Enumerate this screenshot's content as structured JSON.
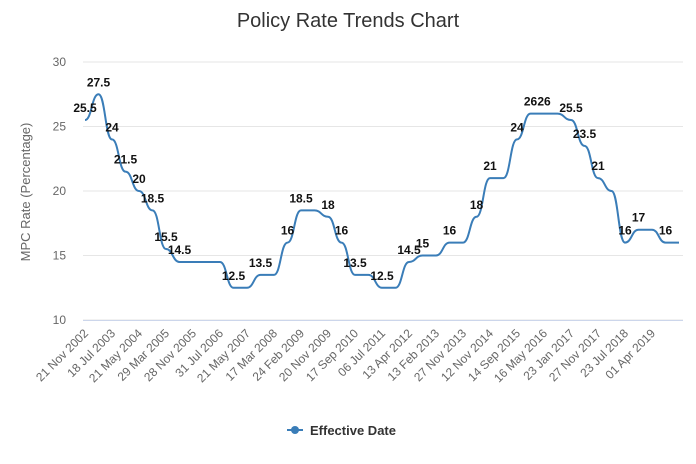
{
  "chart_data": {
    "type": "line",
    "title": "Policy Rate Trends Chart",
    "y_label": "MPC Rate (Percentage)",
    "categories": [
      "21 Nov 2002",
      null,
      "18 Jul 2003",
      null,
      "21 May 2004",
      null,
      "29 Mar 2005",
      null,
      "28 Nov 2005",
      null,
      "31 Jul 2006",
      null,
      "21 May 2007",
      null,
      "17 Mar 2008",
      null,
      "24 Feb 2009",
      null,
      "20 Nov 2009",
      null,
      "17 Sep 2010",
      null,
      "06 Jul 2011",
      null,
      "13 Apr 2012",
      null,
      "13 Feb 2013",
      null,
      "27 Nov 2013",
      null,
      "12 Nov 2014",
      null,
      "14 Sep 2015",
      null,
      "16 May 2016",
      null,
      "23 Jan 2017",
      null,
      "27 Nov 2017",
      null,
      "23 Jul 2018",
      null,
      "01 Apr 2019",
      null,
      null
    ],
    "series": [
      {
        "name": "Effective Date",
        "color": "#3a7db8",
        "values": [
          25.5,
          27.5,
          24,
          21.5,
          20,
          18.5,
          15.5,
          14.5,
          14.5,
          14.5,
          14.5,
          12.5,
          12.5,
          13.5,
          13.5,
          16,
          18.5,
          18.5,
          18,
          16,
          13.5,
          13.5,
          12.5,
          12.5,
          14.5,
          15,
          15,
          16,
          16,
          18,
          21,
          21,
          24,
          26,
          26,
          26,
          25.5,
          23.5,
          21,
          20,
          16,
          17,
          17,
          16,
          16
        ],
        "value_labels": [
          "25.5",
          "27.5",
          "24",
          "21.5",
          "20",
          "18.5",
          "15.5",
          "14.5",
          null,
          null,
          null,
          "12.5",
          null,
          "13.5",
          null,
          "16",
          "18.5",
          null,
          "18",
          "16",
          "13.5",
          null,
          "12.5",
          null,
          "14.5",
          "15",
          null,
          "16",
          null,
          "18",
          "21",
          null,
          "24",
          "26",
          "26",
          null,
          "25.5",
          "23.5",
          "21",
          null,
          "16",
          "17",
          null,
          "16",
          null
        ]
      }
    ],
    "ylim": [
      10,
      30
    ],
    "yticks": [
      10,
      15,
      20,
      25,
      30
    ],
    "grid": true,
    "legend": "bottom"
  }
}
